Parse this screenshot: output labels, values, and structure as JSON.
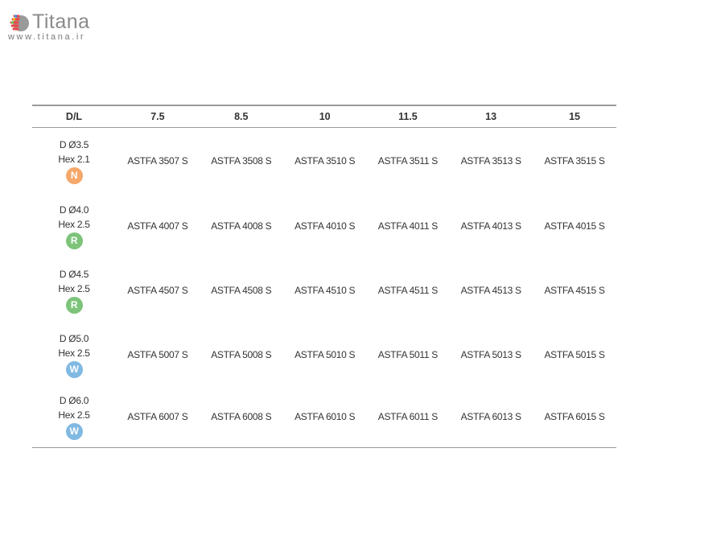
{
  "logo": {
    "name": "Titana",
    "url": "www.titana.ir"
  },
  "table": {
    "headers": [
      "D/L",
      "7.5",
      "8.5",
      "10",
      "11.5",
      "13",
      "15"
    ],
    "rows": [
      {
        "d": "D Ø3.5",
        "hex": "Hex 2.1",
        "badge": "N",
        "badge_color": "#f5a86a",
        "cells": [
          "ASTFA 3507 S",
          "ASTFA 3508 S",
          "ASTFA 3510 S",
          "ASTFA 3511 S",
          "ASTFA 3513 S",
          "ASTFA 3515 S"
        ]
      },
      {
        "d": "D Ø4.0",
        "hex": "Hex 2.5",
        "badge": "R",
        "badge_color": "#7dc47a",
        "cells": [
          "ASTFA 4007 S",
          "ASTFA 4008 S",
          "ASTFA 4010 S",
          "ASTFA 4011 S",
          "ASTFA 4013 S",
          "ASTFA 4015 S"
        ]
      },
      {
        "d": "D Ø4.5",
        "hex": "Hex 2.5",
        "badge": "R",
        "badge_color": "#7dc47a",
        "cells": [
          "ASTFA 4507 S",
          "ASTFA 4508 S",
          "ASTFA 4510 S",
          "ASTFA 4511 S",
          "ASTFA 4513 S",
          "ASTFA 4515 S"
        ]
      },
      {
        "d": "D Ø5.0",
        "hex": "Hex 2.5",
        "badge": "W",
        "badge_color": "#80b9e2",
        "cells": [
          "ASTFA 5007 S",
          "ASTFA 5008 S",
          "ASTFA 5010 S",
          "ASTFA 5011 S",
          "ASTFA 5013 S",
          "ASTFA 5015 S"
        ]
      },
      {
        "d": "D Ø6.0",
        "hex": "Hex 2.5",
        "badge": "W",
        "badge_color": "#80b9e2",
        "cells": [
          "ASTFA 6007 S",
          "ASTFA 6008 S",
          "ASTFA 6010 S",
          "ASTFA 6011 S",
          "ASTFA 6013 S",
          "ASTFA 6015 S"
        ]
      }
    ]
  }
}
